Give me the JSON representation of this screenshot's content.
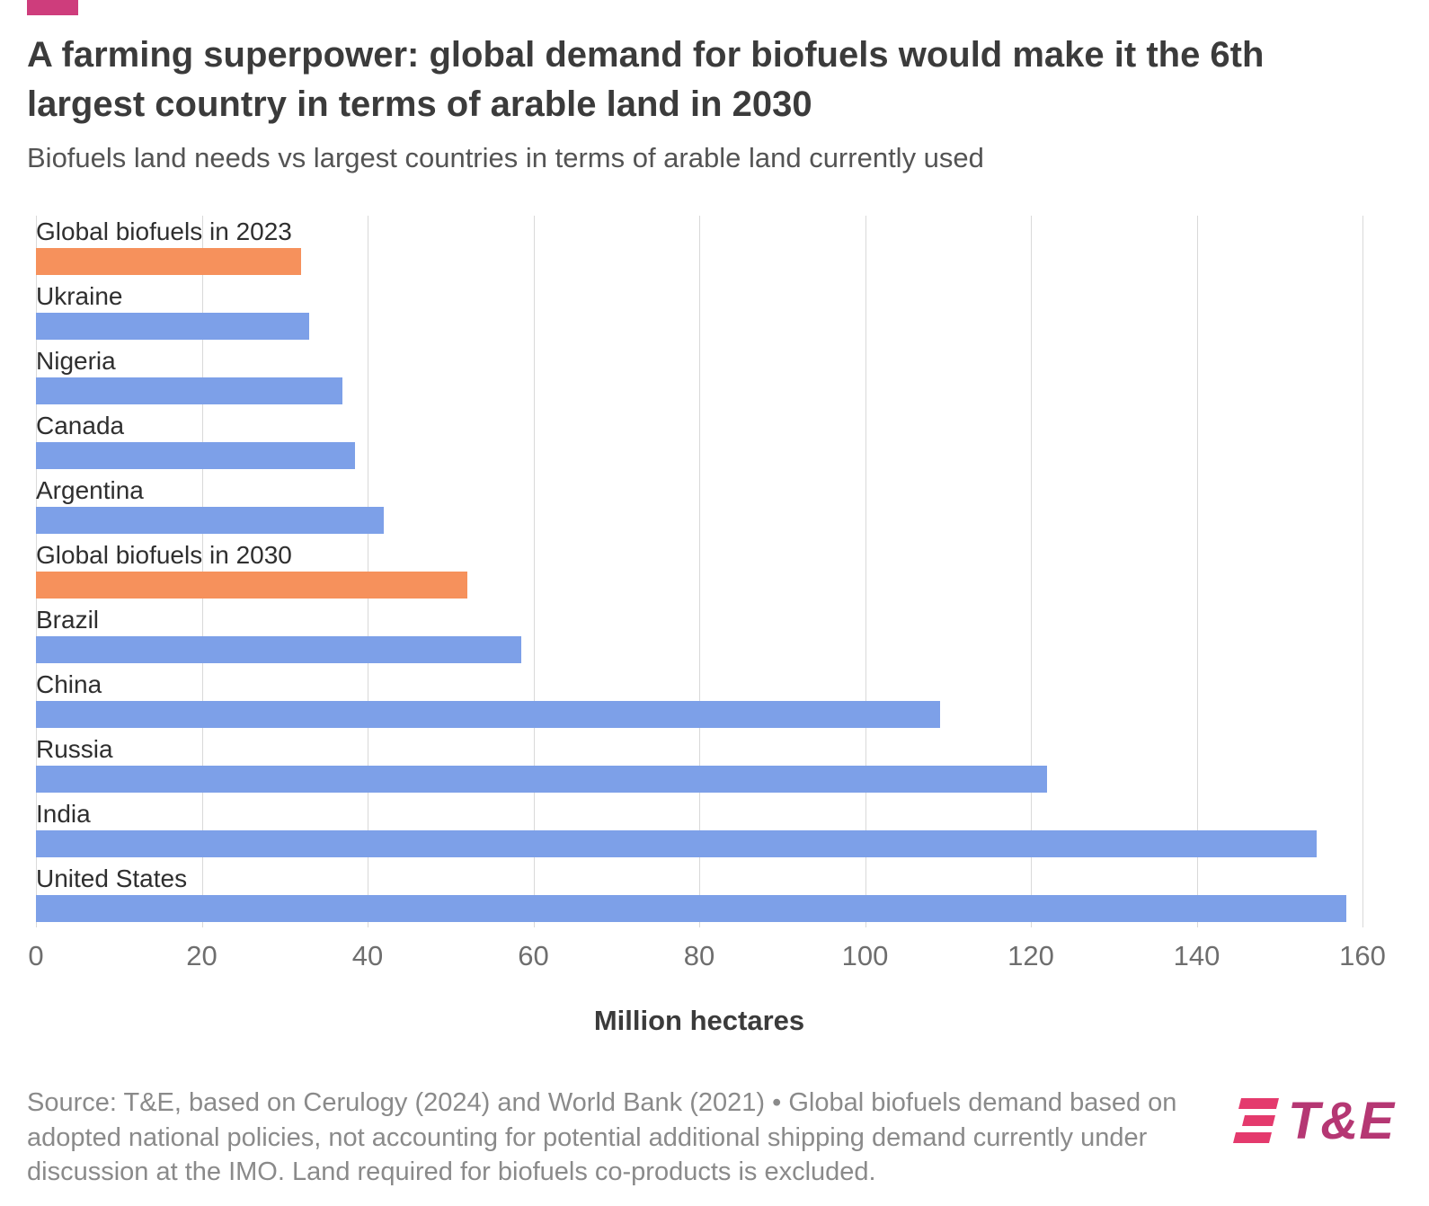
{
  "accent_color": "#ce3d7c",
  "header": {
    "title": "A farming superpower: global demand for biofuels would make it the 6th largest country in terms of arable land in 2030",
    "subtitle": "Biofuels land needs vs largest countries in terms of arable land currently used"
  },
  "chart_data": {
    "type": "bar",
    "orientation": "horizontal",
    "title": "A farming superpower: global demand for biofuels would make it the 6th largest country in terms of arable land in 2030",
    "subtitle": "Biofuels land needs vs largest countries in terms of arable land currently used",
    "categories": [
      "Global biofuels in 2023",
      "Ukraine",
      "Nigeria",
      "Canada",
      "Argentina",
      "Global biofuels in 2030",
      "Brazil",
      "China",
      "Russia",
      "India",
      "United States"
    ],
    "values": [
      32,
      33,
      37,
      38.5,
      42,
      52,
      58.5,
      109,
      122,
      154.5,
      158
    ],
    "bar_colors": [
      "#f6915c",
      "#7da0e8",
      "#7da0e8",
      "#7da0e8",
      "#7da0e8",
      "#f6915c",
      "#7da0e8",
      "#7da0e8",
      "#7da0e8",
      "#7da0e8",
      "#7da0e8"
    ],
    "color_legend": {
      "biofuels": "#f6915c",
      "countries": "#7da0e8"
    },
    "xlabel": "Million hectares",
    "ylabel": "",
    "xlim": [
      0,
      160
    ],
    "xticks": [
      0,
      20,
      40,
      60,
      80,
      100,
      120,
      140,
      160
    ],
    "grid": true,
    "legend_position": "none"
  },
  "footer": {
    "source_text": "Source: T&E, based on Cerulogy (2024) and World Bank (2021) • Global biofuels demand based on adopted national policies, not accounting for potential additional shipping demand currently under discussion at the IMO. Land required for biofuels co-products is excluded.",
    "logo_text": "T&E",
    "logo_color": "#b53773",
    "logo_stripe_color": "#e43a6d"
  }
}
